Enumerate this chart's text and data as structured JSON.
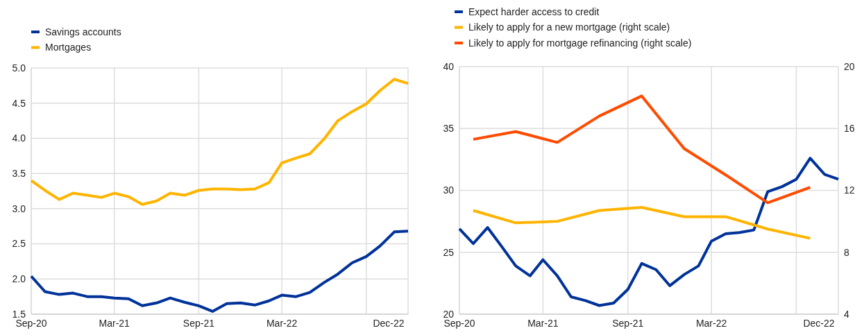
{
  "chart_data": [
    {
      "type": "line",
      "x": [
        "2020-09",
        "2020-10",
        "2020-11",
        "2020-12",
        "2021-01",
        "2021-02",
        "2021-03",
        "2021-04",
        "2021-05",
        "2021-06",
        "2021-07",
        "2021-08",
        "2021-09",
        "2021-10",
        "2021-11",
        "2021-12",
        "2022-01",
        "2022-02",
        "2022-03",
        "2022-04",
        "2022-05",
        "2022-06",
        "2022-07",
        "2022-08",
        "2022-09",
        "2022-10",
        "2022-11",
        "2022-12"
      ],
      "series": [
        {
          "name": "Savings accounts",
          "color": "#003299",
          "values": [
            2.04,
            1.82,
            1.78,
            1.8,
            1.75,
            1.75,
            1.73,
            1.72,
            1.62,
            1.66,
            1.73,
            1.67,
            1.62,
            1.54,
            1.65,
            1.66,
            1.63,
            1.69,
            1.77,
            1.75,
            1.81,
            1.95,
            2.07,
            2.23,
            2.32,
            2.47,
            2.67,
            2.68
          ]
        },
        {
          "name": "Mortgages",
          "color": "#ffb400",
          "values": [
            3.4,
            3.26,
            3.13,
            3.22,
            3.19,
            3.16,
            3.22,
            3.17,
            3.06,
            3.11,
            3.22,
            3.19,
            3.26,
            3.28,
            3.28,
            3.27,
            3.28,
            3.37,
            3.65,
            3.72,
            3.78,
            3.99,
            4.25,
            4.38,
            4.49,
            4.68,
            4.84,
            4.78
          ]
        }
      ],
      "xlim": [
        "2020-09",
        "2022-12"
      ],
      "xticks": [
        {
          "value": "2020-09",
          "label": "Sep-20"
        },
        {
          "value": "2021-03",
          "label": "Mar-21"
        },
        {
          "value": "2021-09",
          "label": "Sep-21"
        },
        {
          "value": "2022-03",
          "label": "Mar-22"
        },
        {
          "value": "2022-09",
          "label": null
        },
        {
          "value": "2022-12",
          "label": "Dec-22"
        }
      ],
      "ylim": [
        1.5,
        5
      ],
      "yticks": [
        {
          "value": 1.5,
          "label": "1.5"
        },
        {
          "value": 2,
          "label": "2.0"
        },
        {
          "value": 2.5,
          "label": "2.5"
        },
        {
          "value": 3,
          "label": "3.0"
        },
        {
          "value": 3.5,
          "label": "3.5"
        },
        {
          "value": 4,
          "label": "4.0"
        },
        {
          "value": 4.5,
          "label": "4.5"
        },
        {
          "value": 5,
          "label": "5.0"
        }
      ],
      "grid": true,
      "legend": "top left",
      "line_style": "solid",
      "marker": "none"
    },
    {
      "type": "line",
      "x": [
        "2020-09",
        "2020-10",
        "2020-11",
        "2020-12",
        "2021-01",
        "2021-02",
        "2021-03",
        "2021-04",
        "2021-05",
        "2021-06",
        "2021-07",
        "2021-08",
        "2021-09",
        "2021-10",
        "2021-11",
        "2021-12",
        "2022-01",
        "2022-02",
        "2022-03",
        "2022-04",
        "2022-05",
        "2022-06",
        "2022-07",
        "2022-08",
        "2022-09",
        "2022-10",
        "2022-11",
        "2022-12"
      ],
      "series": [
        {
          "name": "Expect harder access to credit",
          "color": "#003299",
          "values": [
            26.9,
            25.7,
            27.0,
            25.5,
            23.9,
            23.1,
            24.4,
            23.1,
            21.4,
            21.1,
            20.7,
            20.9,
            22.0,
            24.1,
            23.6,
            22.3,
            23.2,
            23.9,
            25.9,
            26.5,
            26.6,
            26.8,
            29.9,
            30.3,
            30.9,
            32.6,
            31.3,
            30.9
          ]
        },
        {
          "name": "Likely to apply for a new mortgage (right scale)",
          "color": "#ffb400",
          "axis": "y2",
          "x": [
            "2020-10",
            "2021-01",
            "2021-04",
            "2021-07",
            "2021-10",
            "2022-01",
            "2022-04",
            "2022-07",
            "2022-10"
          ],
          "values": [
            10.7,
            9.9,
            10.0,
            10.7,
            10.9,
            10.3,
            10.3,
            9.5,
            8.9
          ]
        },
        {
          "name": "Likely to apply for mortgage refinancing (right scale)",
          "color": "#ff4b00",
          "axis": "y2",
          "x": [
            "2020-10",
            "2021-01",
            "2021-04",
            "2021-07",
            "2021-10",
            "2022-01",
            "2022-04",
            "2022-07",
            "2022-10"
          ],
          "values": [
            15.3,
            15.8,
            15.1,
            16.8,
            18.1,
            14.7,
            13.0,
            11.2,
            12.2
          ]
        }
      ],
      "xlim": [
        "2020-09",
        "2022-12"
      ],
      "xticks": [
        {
          "value": "2020-09",
          "label": "Sep-20"
        },
        {
          "value": "2021-03",
          "label": "Mar-21"
        },
        {
          "value": "2021-09",
          "label": "Sep-21"
        },
        {
          "value": "2022-03",
          "label": "Mar-22"
        },
        {
          "value": "2022-09",
          "label": null
        },
        {
          "value": "2022-12",
          "label": "Dec-22"
        }
      ],
      "ylim": [
        20,
        40
      ],
      "yticks": [
        20,
        25,
        30,
        35,
        40
      ],
      "y2lim": [
        4,
        20
      ],
      "y2ticks": [
        4,
        8,
        12,
        16,
        20
      ],
      "grid": true,
      "legend": "top left",
      "line_style": "solid",
      "marker": "none"
    }
  ]
}
